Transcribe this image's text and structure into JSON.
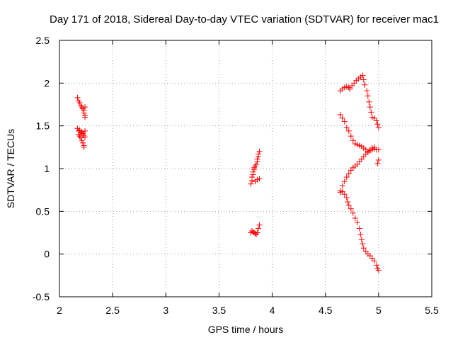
{
  "chart_data": {
    "type": "scatter",
    "title": "Day 171 of 2018, Sidereal Day-to-day VTEC variation (SDTVAR) for receiver mac1",
    "xlabel": "GPS time / hours",
    "ylabel": "SDTVAR / TECUs",
    "xlim": [
      2,
      5.5
    ],
    "ylim": [
      -0.5,
      2.5
    ],
    "xticks": [
      "2",
      "2.5",
      "3",
      "3.5",
      "4",
      "4.5",
      "5",
      "5.5"
    ],
    "yticks": [
      "-0.5",
      "0",
      "0.5",
      "1",
      "1.5",
      "2",
      "2.5"
    ],
    "grid": true,
    "marker": "+",
    "series": [
      {
        "name": "SDTVAR",
        "color": "#ff0000",
        "points": [
          [
            2.17,
            1.83
          ],
          [
            2.18,
            1.79
          ],
          [
            2.19,
            1.77
          ],
          [
            2.2,
            1.74
          ],
          [
            2.21,
            1.72
          ],
          [
            2.22,
            1.7
          ],
          [
            2.23,
            1.68
          ],
          [
            2.23,
            1.65
          ],
          [
            2.24,
            1.62
          ],
          [
            2.24,
            1.6
          ],
          [
            2.24,
            1.72
          ],
          [
            2.17,
            1.47
          ],
          [
            2.18,
            1.44
          ],
          [
            2.18,
            1.4
          ],
          [
            2.19,
            1.38
          ],
          [
            2.2,
            1.36
          ],
          [
            2.21,
            1.33
          ],
          [
            2.22,
            1.3
          ],
          [
            2.23,
            1.27
          ],
          [
            2.23,
            1.25
          ],
          [
            2.19,
            1.45
          ],
          [
            2.21,
            1.43
          ],
          [
            2.22,
            1.41
          ],
          [
            2.23,
            1.39
          ],
          [
            2.24,
            1.44
          ],
          [
            2.24,
            1.37
          ],
          [
            2.2,
            1.42
          ],
          [
            3.8,
            0.82
          ],
          [
            3.81,
            0.86
          ],
          [
            3.81,
            0.9
          ],
          [
            3.82,
            0.93
          ],
          [
            3.82,
            0.96
          ],
          [
            3.83,
            0.99
          ],
          [
            3.83,
            1.01
          ],
          [
            3.84,
            1.03
          ],
          [
            3.85,
            1.05
          ],
          [
            3.86,
            1.08
          ],
          [
            3.86,
            1.11
          ],
          [
            3.87,
            1.14
          ],
          [
            3.87,
            1.17
          ],
          [
            3.88,
            1.2
          ],
          [
            3.84,
            0.85
          ],
          [
            3.86,
            0.87
          ],
          [
            3.88,
            0.88
          ],
          [
            3.8,
            0.25
          ],
          [
            3.81,
            0.27
          ],
          [
            3.82,
            0.26
          ],
          [
            3.83,
            0.25
          ],
          [
            3.84,
            0.24
          ],
          [
            3.85,
            0.23
          ],
          [
            3.86,
            0.25
          ],
          [
            3.87,
            0.3
          ],
          [
            3.88,
            0.34
          ],
          [
            4.64,
            1.91
          ],
          [
            4.66,
            1.93
          ],
          [
            4.68,
            1.95
          ],
          [
            4.7,
            1.96
          ],
          [
            4.72,
            1.95
          ],
          [
            4.73,
            1.93
          ],
          [
            4.75,
            1.97
          ],
          [
            4.77,
            2.0
          ],
          [
            4.79,
            2.03
          ],
          [
            4.81,
            2.05
          ],
          [
            4.83,
            2.07
          ],
          [
            4.85,
            2.09
          ],
          [
            4.86,
            2.04
          ],
          [
            4.87,
            1.98
          ],
          [
            4.89,
            1.91
          ],
          [
            4.9,
            1.85
          ],
          [
            4.91,
            1.78
          ],
          [
            4.92,
            1.72
          ],
          [
            4.93,
            1.66
          ],
          [
            4.94,
            1.6
          ],
          [
            4.96,
            1.59
          ],
          [
            4.98,
            1.56
          ],
          [
            4.99,
            1.52
          ],
          [
            5.0,
            1.48
          ],
          [
            4.64,
            1.63
          ],
          [
            4.66,
            1.59
          ],
          [
            4.68,
            1.55
          ],
          [
            4.7,
            1.48
          ],
          [
            4.72,
            1.44
          ],
          [
            4.74,
            1.38
          ],
          [
            4.76,
            1.33
          ],
          [
            4.78,
            1.29
          ],
          [
            4.8,
            1.28
          ],
          [
            4.82,
            1.27
          ],
          [
            4.84,
            1.26
          ],
          [
            4.86,
            1.24
          ],
          [
            4.88,
            1.22
          ],
          [
            4.9,
            1.2
          ],
          [
            4.92,
            1.21
          ],
          [
            4.94,
            1.22
          ],
          [
            4.96,
            1.23
          ],
          [
            4.98,
            1.22
          ],
          [
            5.0,
            1.22
          ],
          [
            5.0,
            1.1
          ],
          [
            4.99,
            1.06
          ],
          [
            4.64,
            0.74
          ],
          [
            4.66,
            0.8
          ],
          [
            4.68,
            0.85
          ],
          [
            4.7,
            0.9
          ],
          [
            4.72,
            0.94
          ],
          [
            4.74,
            0.98
          ],
          [
            4.76,
            1.01
          ],
          [
            4.78,
            1.03
          ],
          [
            4.8,
            1.05
          ],
          [
            4.82,
            1.08
          ],
          [
            4.84,
            1.11
          ],
          [
            4.86,
            1.14
          ],
          [
            4.88,
            1.17
          ],
          [
            4.9,
            1.19
          ],
          [
            4.92,
            1.22
          ],
          [
            4.94,
            1.24
          ],
          [
            4.96,
            1.25
          ],
          [
            4.64,
            0.72
          ],
          [
            4.66,
            0.73
          ],
          [
            4.68,
            0.7
          ],
          [
            4.7,
            0.66
          ],
          [
            4.71,
            0.61
          ],
          [
            4.72,
            0.57
          ],
          [
            4.74,
            0.53
          ],
          [
            4.76,
            0.48
          ],
          [
            4.78,
            0.42
          ],
          [
            4.8,
            0.37
          ],
          [
            4.82,
            0.3
          ],
          [
            4.83,
            0.23
          ],
          [
            4.84,
            0.17
          ],
          [
            4.85,
            0.12
          ],
          [
            4.86,
            0.07
          ],
          [
            4.88,
            0.03
          ],
          [
            4.9,
            0.0
          ],
          [
            4.92,
            -0.02
          ],
          [
            4.94,
            -0.05
          ],
          [
            4.96,
            -0.08
          ],
          [
            4.98,
            -0.13
          ],
          [
            4.99,
            -0.17
          ],
          [
            5.0,
            -0.19
          ]
        ]
      }
    ]
  }
}
